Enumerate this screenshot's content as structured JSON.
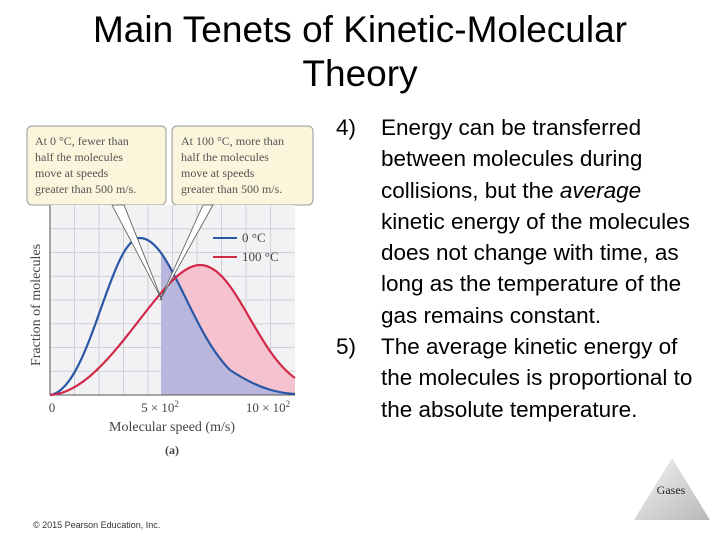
{
  "title": "Main Tenets of Kinetic-Molecular Theory",
  "figure": {
    "callouts": [
      [
        "At 0 °C, fewer than",
        "half the molecules",
        "move at speeds",
        "greater than 500 m/s."
      ],
      [
        "At 100 °C, more than",
        "half the molecules",
        "move at speeds",
        "greater than 500 m/s."
      ]
    ],
    "legend": [
      "0 °C",
      "100 °C"
    ],
    "y_label": "Fraction of molecules",
    "x_label": "Molecular speed (m/s)",
    "x_ticks": [
      {
        "base": "0"
      },
      {
        "base": "5 × 10",
        "exp": "2"
      },
      {
        "base": "10 × 10",
        "exp": "2"
      }
    ],
    "caption": "(a)"
  },
  "tenets": [
    {
      "number": "4)",
      "parts": [
        "Energy can be transferred between molecules during collisions, but the ",
        "average",
        " kinetic energy of the molecules does not change with time, as long as the temperature of the gas remains constant."
      ]
    },
    {
      "number": "5)",
      "parts": [
        "The average kinetic energy of the molecules is proportional to the absolute temperature."
      ]
    }
  ],
  "footer": {
    "copyright": "© 2015 Pearson Education, Inc.",
    "corner": "Gases"
  }
}
